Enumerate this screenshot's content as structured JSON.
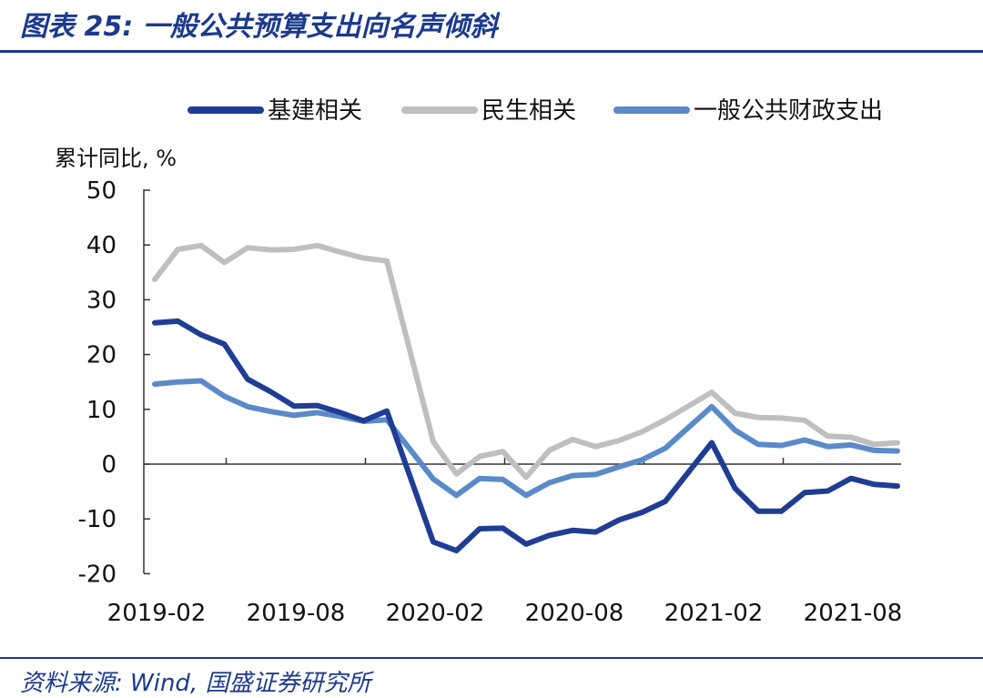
{
  "header": {
    "title": "图表 25:  一般公共预算支出向名声倾斜"
  },
  "footer": {
    "source": "资料来源:  Wind,  国盛证券研究所"
  },
  "chart_data": {
    "type": "line",
    "title": "",
    "ylabel": "累计同比, %",
    "xlabel": "",
    "ylim": [
      -20,
      50
    ],
    "yticks": [
      -20,
      -10,
      0,
      10,
      20,
      30,
      40,
      50
    ],
    "xtick_labels": [
      "2019-02",
      "2019-08",
      "2020-02",
      "2020-08",
      "2021-02",
      "2021-08"
    ],
    "grid": false,
    "legend_position": "top",
    "x": [
      "2019-02",
      "2019-03",
      "2019-04",
      "2019-05",
      "2019-06",
      "2019-07",
      "2019-08",
      "2019-09",
      "2019-10",
      "2019-11",
      "2019-12",
      "2020-01",
      "2020-02",
      "2020-03",
      "2020-04",
      "2020-05",
      "2020-06",
      "2020-07",
      "2020-08",
      "2020-09",
      "2020-10",
      "2020-11",
      "2020-12",
      "2021-01",
      "2021-02",
      "2021-03",
      "2021-04",
      "2021-05",
      "2021-06",
      "2021-07",
      "2021-08",
      "2021-09",
      "2021-10",
      "2021-11"
    ],
    "series": [
      {
        "name": "基建相关",
        "color": "#1f3d94",
        "values": [
          25.8,
          26.1,
          23.6,
          21.9,
          15.5,
          13.2,
          10.6,
          10.7,
          9.4,
          7.9,
          9.7,
          null,
          -14.2,
          -15.8,
          -11.8,
          -11.7,
          -14.6,
          -13.0,
          -12.1,
          -12.4,
          -10.2,
          -8.8,
          -6.8,
          null,
          3.9,
          -4.4,
          -8.6,
          -8.6,
          -5.2,
          -4.9,
          -2.6,
          -3.7,
          -4.0,
          null
        ]
      },
      {
        "name": "民生相关",
        "color": "#bfbfbf",
        "values": [
          33.7,
          39.2,
          39.9,
          36.8,
          39.5,
          39.1,
          39.2,
          39.9,
          38.7,
          37.6,
          37.1,
          null,
          4.1,
          -1.8,
          1.4,
          2.3,
          -2.4,
          2.5,
          4.5,
          3.2,
          4.3,
          5.9,
          8.1,
          null,
          13.1,
          9.3,
          8.5,
          8.4,
          8.0,
          5.1,
          4.9,
          3.6,
          3.9,
          null
        ]
      },
      {
        "name": "一般公共财政支出",
        "color": "#5b8ac9",
        "values": [
          14.6,
          15.0,
          15.2,
          12.4,
          10.5,
          9.6,
          8.9,
          9.4,
          8.7,
          7.8,
          8.1,
          null,
          -2.7,
          -5.7,
          -2.6,
          -2.8,
          -5.7,
          -3.4,
          -2.1,
          -1.9,
          -0.5,
          0.8,
          2.9,
          null,
          10.5,
          6.2,
          3.6,
          3.4,
          4.4,
          3.2,
          3.5,
          2.5,
          2.4,
          null
        ]
      }
    ]
  }
}
